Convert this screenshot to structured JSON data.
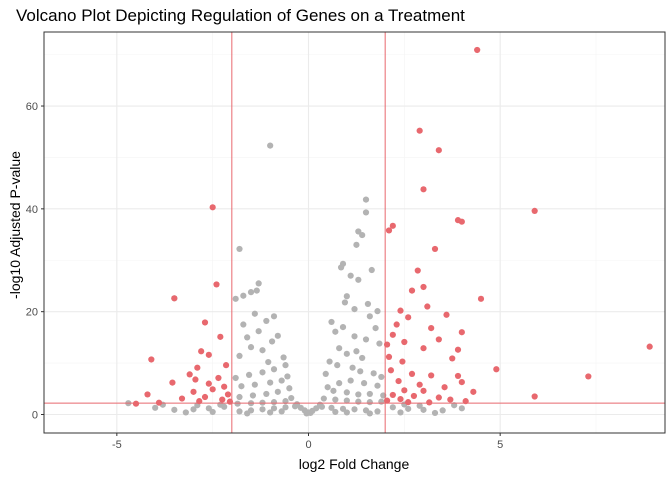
{
  "chart_data": {
    "type": "scatter",
    "title": "Volcano Plot Depicting Regulation of Genes on a Treatment",
    "xlabel": "log2 Fold Change",
    "ylabel": "-log10 Adjusted P-value",
    "xlim": [
      -6.9,
      9.3
    ],
    "ylim": [
      -3.6,
      74.4
    ],
    "x_ticks": [
      -5,
      0,
      5
    ],
    "y_ticks": [
      0,
      20,
      40,
      60
    ],
    "grid": true,
    "legend": "none",
    "thresholds": {
      "log2fc": [
        -2,
        2
      ],
      "neg_log10_padj": 2.2
    },
    "colors": {
      "significant": "#e8686e",
      "not_significant": "#b3b3b3",
      "threshold_line": "#e8686e",
      "grid_major": "#ebebeb",
      "grid_minor": "#f4f4f4",
      "panel_border": "#333333"
    },
    "series": [
      {
        "color": "#b3b3b3",
        "points": [
          [
            -1.0,
            52.3
          ],
          [
            1.5,
            41.8
          ],
          [
            1.5,
            39.3
          ],
          [
            1.3,
            35.6
          ],
          [
            1.4,
            34.9
          ],
          [
            1.25,
            33.0
          ],
          [
            -1.8,
            32.2
          ],
          [
            0.9,
            29.3
          ],
          [
            0.85,
            28.6
          ],
          [
            1.65,
            28.1
          ],
          [
            1.1,
            27.0
          ],
          [
            1.3,
            26.2
          ],
          [
            -1.3,
            25.5
          ],
          [
            -1.35,
            24.1
          ],
          [
            -1.5,
            23.8
          ],
          [
            -1.7,
            23.1
          ],
          [
            -1.9,
            22.5
          ],
          [
            -3.5,
            22.6
          ],
          [
            1.55,
            21.5
          ],
          [
            1.0,
            23.0
          ],
          [
            1.2,
            20.5
          ],
          [
            1.8,
            20.1
          ],
          [
            1.6,
            19.1
          ],
          [
            -1.4,
            19.6
          ],
          [
            -0.9,
            19.1
          ],
          [
            -1.1,
            18.2
          ],
          [
            -1.7,
            17.5
          ],
          [
            -1.3,
            16.2
          ],
          [
            -0.8,
            15.3
          ],
          [
            -0.95,
            14.2
          ],
          [
            -1.5,
            13.1
          ],
          [
            -1.2,
            12.5
          ],
          [
            -1.8,
            11.4
          ],
          [
            0.6,
            18.0
          ],
          [
            0.9,
            17.0
          ],
          [
            0.7,
            16.1
          ],
          [
            1.2,
            15.2
          ],
          [
            1.5,
            14.6
          ],
          [
            1.85,
            13.8
          ],
          [
            0.8,
            12.9
          ],
          [
            1.0,
            11.8
          ],
          [
            1.4,
            11.0
          ],
          [
            0.55,
            10.3
          ],
          [
            0.75,
            9.6
          ],
          [
            1.15,
            9.1
          ],
          [
            1.35,
            8.4
          ],
          [
            1.7,
            8.0
          ],
          [
            1.9,
            7.3
          ],
          [
            -0.6,
            9.6
          ],
          [
            -0.9,
            8.8
          ],
          [
            -1.2,
            8.2
          ],
          [
            -1.55,
            7.7
          ],
          [
            -1.9,
            7.1
          ],
          [
            -0.7,
            6.6
          ],
          [
            -1.0,
            6.2
          ],
          [
            -1.4,
            5.8
          ],
          [
            -1.75,
            5.5
          ],
          [
            -0.5,
            5.1
          ],
          [
            0.5,
            5.3
          ],
          [
            0.8,
            6.1
          ],
          [
            1.1,
            6.6
          ],
          [
            1.45,
            6.1
          ],
          [
            1.8,
            5.6
          ],
          [
            0.65,
            4.6
          ],
          [
            1.0,
            4.3
          ],
          [
            1.3,
            3.9
          ],
          [
            1.6,
            4.0
          ],
          [
            1.95,
            3.7
          ],
          [
            -0.8,
            4.4
          ],
          [
            -1.1,
            4.0
          ],
          [
            -1.45,
            3.7
          ],
          [
            -1.8,
            3.4
          ],
          [
            -0.45,
            3.2
          ],
          [
            0.4,
            3.1
          ],
          [
            0.7,
            2.9
          ],
          [
            1.0,
            2.7
          ],
          [
            1.3,
            2.5
          ],
          [
            1.6,
            2.4
          ],
          [
            1.9,
            2.5
          ],
          [
            -0.6,
            2.6
          ],
          [
            -0.9,
            2.4
          ],
          [
            -1.2,
            2.3
          ],
          [
            -1.5,
            2.2
          ],
          [
            -1.85,
            2.1
          ],
          [
            -0.3,
            2.0
          ],
          [
            0.3,
            1.9
          ],
          [
            -0.2,
            1.3
          ],
          [
            0.2,
            1.2
          ],
          [
            -0.1,
            0.8
          ],
          [
            0.1,
            0.7
          ],
          [
            0.0,
            0.4
          ],
          [
            -0.05,
            0.2
          ],
          [
            0.05,
            0.3
          ],
          [
            -0.35,
            1.6
          ],
          [
            0.35,
            1.5
          ],
          [
            -0.6,
            1.4
          ],
          [
            0.6,
            1.3
          ],
          [
            -0.9,
            1.2
          ],
          [
            0.9,
            1.1
          ],
          [
            -1.2,
            1.0
          ],
          [
            1.2,
            1.0
          ],
          [
            -1.5,
            0.8
          ],
          [
            1.5,
            0.8
          ],
          [
            -1.8,
            0.6
          ],
          [
            1.8,
            0.6
          ],
          [
            -2.2,
            1.5
          ],
          [
            2.2,
            1.4
          ],
          [
            -2.6,
            1.2
          ],
          [
            2.6,
            1.1
          ],
          [
            -3.0,
            1.0
          ],
          [
            3.0,
            0.9
          ],
          [
            -3.5,
            0.9
          ],
          [
            3.5,
            0.8
          ],
          [
            -4.0,
            1.3
          ],
          [
            -4.7,
            2.2
          ],
          [
            4.0,
            1.2
          ],
          [
            -2.5,
            0.5
          ],
          [
            2.4,
            0.4
          ],
          [
            -3.2,
            0.4
          ],
          [
            3.3,
            0.3
          ],
          [
            -1.6,
            0.2
          ],
          [
            1.6,
            0.2
          ],
          [
            -2.9,
            1.8
          ],
          [
            2.9,
            1.7
          ],
          [
            -3.8,
            1.9
          ],
          [
            3.8,
            1.8
          ],
          [
            -2.3,
            1.9
          ],
          [
            2.5,
            1.95
          ],
          [
            -1.0,
            0.4
          ],
          [
            1.0,
            0.4
          ],
          [
            -0.7,
            0.6
          ],
          [
            0.7,
            0.5
          ],
          [
            1.25,
            12.3
          ],
          [
            -0.65,
            11.1
          ],
          [
            0.95,
            21.8
          ],
          [
            1.75,
            16.8
          ],
          [
            -1.6,
            15.0
          ],
          [
            -1.05,
            10.2
          ],
          [
            0.45,
            7.9
          ],
          [
            -0.55,
            7.4
          ]
        ]
      },
      {
        "color": "#e8686e",
        "points": [
          [
            4.4,
            70.9
          ],
          [
            2.9,
            55.2
          ],
          [
            3.4,
            51.4
          ],
          [
            3.0,
            43.8
          ],
          [
            -2.5,
            40.3
          ],
          [
            5.9,
            39.6
          ],
          [
            3.9,
            37.8
          ],
          [
            4.0,
            37.5
          ],
          [
            2.2,
            36.7
          ],
          [
            2.1,
            35.8
          ],
          [
            3.3,
            32.2
          ],
          [
            2.85,
            28.0
          ],
          [
            -2.4,
            25.3
          ],
          [
            3.0,
            24.8
          ],
          [
            2.7,
            24.1
          ],
          [
            4.5,
            22.5
          ],
          [
            -3.5,
            22.6
          ],
          [
            3.1,
            21.0
          ],
          [
            2.4,
            20.2
          ],
          [
            3.6,
            19.4
          ],
          [
            2.6,
            18.9
          ],
          [
            -2.7,
            17.9
          ],
          [
            2.3,
            17.5
          ],
          [
            3.2,
            16.8
          ],
          [
            4.0,
            16.0
          ],
          [
            2.2,
            15.5
          ],
          [
            -2.3,
            15.1
          ],
          [
            3.4,
            14.6
          ],
          [
            2.5,
            14.1
          ],
          [
            2.05,
            13.6
          ],
          [
            8.9,
            13.2
          ],
          [
            -2.8,
            12.3
          ],
          [
            3.0,
            12.9
          ],
          [
            3.9,
            12.6
          ],
          [
            -2.6,
            11.6
          ],
          [
            2.1,
            11.2
          ],
          [
            -4.1,
            10.7
          ],
          [
            2.45,
            10.3
          ],
          [
            3.75,
            10.9
          ],
          [
            -2.15,
            9.6
          ],
          [
            4.9,
            8.8
          ],
          [
            -2.9,
            9.1
          ],
          [
            2.15,
            8.6
          ],
          [
            -3.1,
            7.8
          ],
          [
            2.7,
            7.9
          ],
          [
            3.2,
            7.6
          ],
          [
            3.9,
            7.5
          ],
          [
            7.3,
            7.4
          ],
          [
            -2.35,
            7.1
          ],
          [
            -2.95,
            6.8
          ],
          [
            2.35,
            6.5
          ],
          [
            4.0,
            6.3
          ],
          [
            -3.55,
            6.2
          ],
          [
            -2.6,
            6.0
          ],
          [
            2.9,
            5.8
          ],
          [
            -2.2,
            5.4
          ],
          [
            3.55,
            5.3
          ],
          [
            -2.5,
            4.9
          ],
          [
            2.5,
            4.7
          ],
          [
            3.0,
            4.6
          ],
          [
            -3.0,
            4.4
          ],
          [
            4.3,
            4.4
          ],
          [
            -4.2,
            3.9
          ],
          [
            -2.1,
            3.9
          ],
          [
            2.2,
            3.8
          ],
          [
            2.75,
            3.6
          ],
          [
            5.9,
            3.5
          ],
          [
            -2.7,
            3.4
          ],
          [
            3.4,
            3.3
          ],
          [
            -3.3,
            3.1
          ],
          [
            2.4,
            3.0
          ],
          [
            -2.25,
            2.9
          ],
          [
            3.7,
            2.9
          ],
          [
            2.05,
            2.7
          ],
          [
            -2.85,
            2.6
          ],
          [
            -3.9,
            2.3
          ],
          [
            4.1,
            2.6
          ],
          [
            -2.05,
            2.5
          ],
          [
            2.6,
            2.4
          ],
          [
            3.15,
            2.35
          ],
          [
            -4.5,
            2.1
          ]
        ]
      }
    ]
  }
}
